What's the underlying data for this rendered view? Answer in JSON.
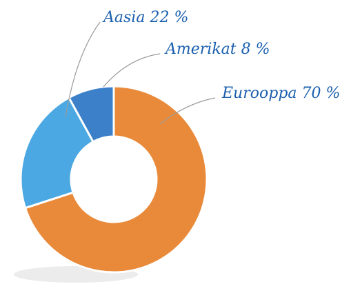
{
  "chart_data": {
    "type": "donut",
    "categories": [
      "Eurooppa",
      "Aasia",
      "Amerikat"
    ],
    "values": [
      70,
      22,
      8
    ],
    "value_labels": [
      "70 %",
      "22 %",
      "8 %"
    ],
    "colors": [
      "#e98a3a",
      "#4ba8e2",
      "#3b80c9"
    ]
  }
}
